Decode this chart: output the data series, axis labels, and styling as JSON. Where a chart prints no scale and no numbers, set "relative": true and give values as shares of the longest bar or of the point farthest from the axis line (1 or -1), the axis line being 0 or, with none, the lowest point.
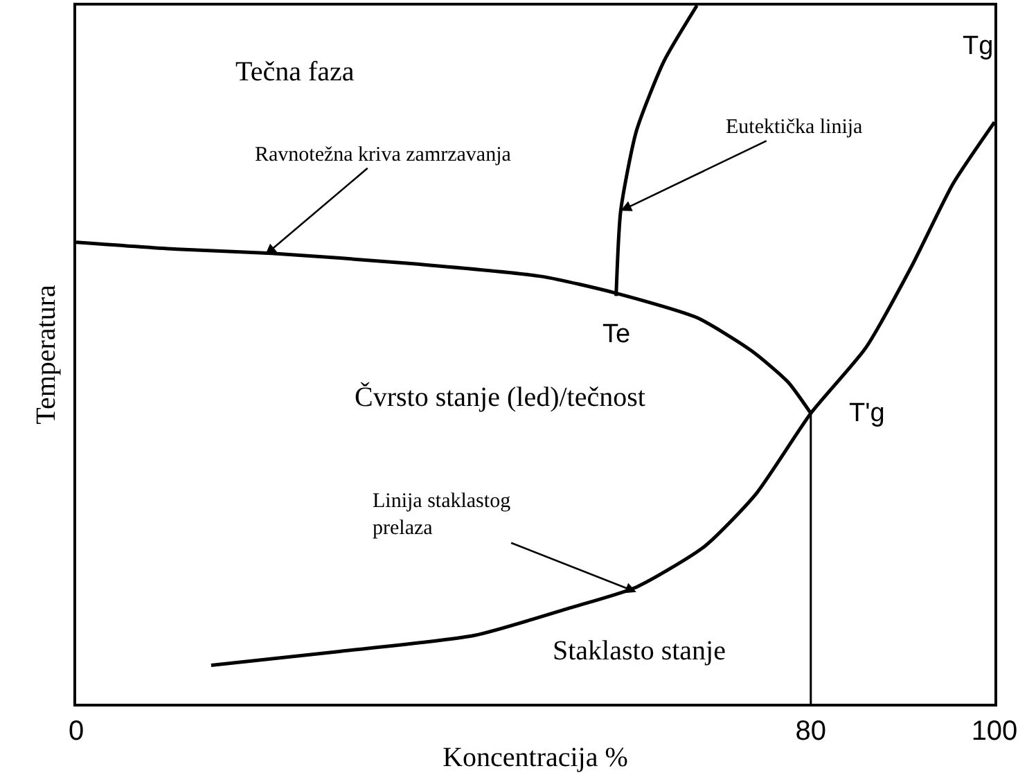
{
  "chart_data": {
    "type": "line",
    "relative": true,
    "xlabel": "Koncentracija %",
    "ylabel": "Temperatura",
    "xlim": [
      0,
      100
    ],
    "xticks": [
      0,
      80,
      100
    ],
    "tick_labels": "x",
    "grid": false,
    "marker": "none",
    "line_style": "solid",
    "series": [
      {
        "color": "#000000",
        "x": [
          0,
          11,
          21.3,
          36,
          50.7,
          58.8,
          67.6,
          73.5,
          77.5,
          80
        ],
        "values": [
          0.661,
          0.651,
          0.645,
          0.631,
          0.612,
          0.588,
          0.553,
          0.506,
          0.461,
          0.416
        ]
      },
      {
        "color": "#000000",
        "x": [
          14.7,
          28.7,
          43.4,
          53.7,
          61,
          68.4,
          74,
          80,
          86,
          91,
          95.5,
          100
        ],
        "values": [
          0.055,
          0.075,
          0.098,
          0.137,
          0.167,
          0.225,
          0.3,
          0.416,
          0.51,
          0.627,
          0.745,
          0.833
        ]
      },
      {
        "color": "#000000",
        "x": [
          58.8,
          59.3,
          61,
          64,
          67.6
        ],
        "values": [
          0.584,
          0.706,
          0.82,
          0.92,
          1.0
        ]
      }
    ],
    "ref_lines": [
      {
        "axis": "x",
        "value": 80,
        "color": "#000000"
      }
    ],
    "annotations": [
      "Tečna faza",
      "Čvrsto stanje (led)/tečnost",
      "Staklasto stanje",
      {
        "text": "Ravnotežna kriva zamrzavanja",
        "x": 20.6,
        "y": 0.643
      },
      {
        "text": "Eutektička linija",
        "x": 59.3,
        "y": 0.706
      },
      {
        "text": "Linija staklastog\nprelaza",
        "x": 61,
        "y": 0.16
      },
      {
        "text": "Te",
        "x": 58.8,
        "y": 0.584
      },
      {
        "text": "T'g",
        "x": 80,
        "y": 0.416
      },
      {
        "text": "Tg",
        "x": 100,
        "y": 0.833
      }
    ]
  }
}
